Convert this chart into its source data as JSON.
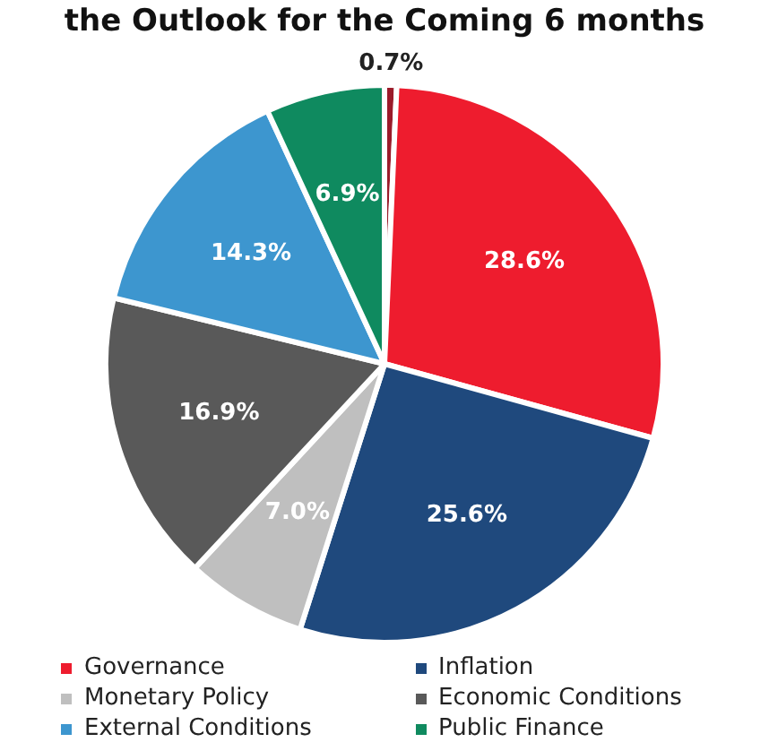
{
  "chart_data": {
    "type": "pie",
    "title": "the Outlook for the Coming 6 months",
    "categories": [
      null,
      "Governance",
      "Inflation",
      "Monetary Policy",
      "Economic Conditions",
      "External Conditions",
      "Public Finance"
    ],
    "values": [
      0.7,
      28.6,
      25.6,
      7.0,
      16.9,
      14.3,
      6.9
    ],
    "colors": [
      "#9b1b2a",
      "#ee1c2e",
      "#1f497d",
      "#bfbfbf",
      "#595959",
      "#3d96cf",
      "#0f8a5f"
    ],
    "value_labels": [
      "0.7%",
      "28.6%",
      "25.6%",
      "7.0%",
      "16.9%",
      "14.3%",
      "6.9%"
    ],
    "legend": "bottom"
  }
}
